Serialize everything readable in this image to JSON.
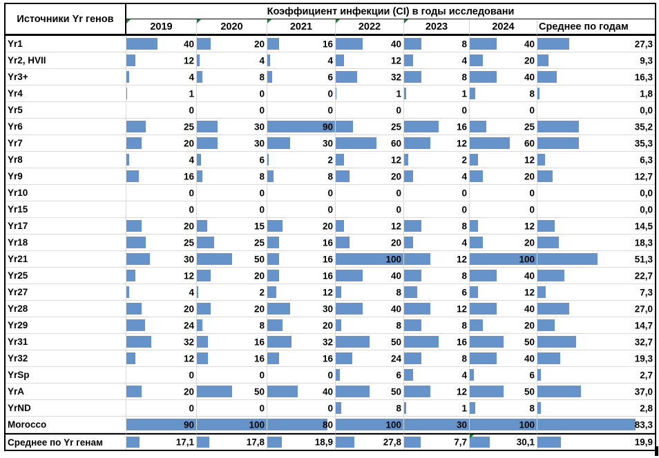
{
  "table": {
    "title": "Коэффициент инфекции (CI) в годы исследовани",
    "row_header_label": "Источники Yr генов",
    "avg_column_label": "Среднее по годам",
    "columns": [
      {
        "label": "2019",
        "marker": true
      },
      {
        "label": "2020",
        "marker": true
      },
      {
        "label": "2021",
        "marker": true
      },
      {
        "label": "2022",
        "marker": true
      },
      {
        "label": "2023",
        "marker": true
      },
      {
        "label": "2024",
        "marker": false
      }
    ],
    "bar_scale_max": [
      90,
      100,
      90,
      100,
      30,
      100,
      100
    ],
    "rows": [
      {
        "label": "Yr1",
        "values": [
          40,
          20,
          16,
          40,
          8,
          40
        ],
        "avg": "27,3"
      },
      {
        "label": "Yr2, HVII",
        "values": [
          12,
          4,
          4,
          12,
          4,
          20
        ],
        "avg": "9,3"
      },
      {
        "label": "Yr3+",
        "values": [
          4,
          8,
          6,
          32,
          8,
          40
        ],
        "avg": "16,3"
      },
      {
        "label": "Yr4",
        "values": [
          1,
          0,
          0,
          1,
          1,
          8
        ],
        "avg": "1,8"
      },
      {
        "label": "Yr5",
        "values": [
          0,
          0,
          0,
          0,
          0,
          0
        ],
        "avg": "0,0"
      },
      {
        "label": "Yr6",
        "values": [
          25,
          30,
          90,
          25,
          16,
          25
        ],
        "avg": "35,2"
      },
      {
        "label": "Yr7",
        "values": [
          20,
          30,
          30,
          60,
          12,
          60
        ],
        "avg": "35,3"
      },
      {
        "label": "Yr8",
        "values": [
          4,
          6,
          2,
          12,
          2,
          12
        ],
        "avg": "6,3"
      },
      {
        "label": "Yr9",
        "values": [
          16,
          8,
          8,
          20,
          4,
          20
        ],
        "avg": "12,7"
      },
      {
        "label": "Yr10",
        "values": [
          0,
          0,
          0,
          0,
          0,
          0
        ],
        "avg": "0,0"
      },
      {
        "label": "Yr15",
        "values": [
          0,
          0,
          0,
          0,
          0,
          0
        ],
        "avg": "0,0"
      },
      {
        "label": "Yr17",
        "values": [
          20,
          15,
          20,
          12,
          8,
          12
        ],
        "avg": "14,5"
      },
      {
        "label": "Yr18",
        "values": [
          25,
          25,
          16,
          20,
          4,
          20
        ],
        "avg": "18,3"
      },
      {
        "label": "Yr21",
        "values": [
          30,
          50,
          16,
          100,
          12,
          100
        ],
        "avg": "51,3"
      },
      {
        "label": "Yr25",
        "values": [
          12,
          20,
          16,
          40,
          8,
          40
        ],
        "avg": "22,7"
      },
      {
        "label": "Yr27",
        "values": [
          4,
          2,
          12,
          8,
          6,
          12
        ],
        "avg": "7,3"
      },
      {
        "label": "Yr28",
        "values": [
          20,
          20,
          30,
          40,
          12,
          40
        ],
        "avg": "27,0"
      },
      {
        "label": "Yr29",
        "values": [
          24,
          8,
          20,
          8,
          8,
          20
        ],
        "avg": "14,7"
      },
      {
        "label": "Yr31",
        "values": [
          32,
          16,
          32,
          50,
          16,
          50
        ],
        "avg": "32,7"
      },
      {
        "label": "Yr32",
        "values": [
          12,
          16,
          16,
          24,
          8,
          40
        ],
        "avg": "19,3"
      },
      {
        "label": "YrSp",
        "values": [
          0,
          0,
          0,
          6,
          4,
          6
        ],
        "avg": "2,7"
      },
      {
        "label": "YrA",
        "values": [
          20,
          50,
          40,
          50,
          12,
          50
        ],
        "avg": "37,0"
      },
      {
        "label": "YrND",
        "values": [
          0,
          0,
          0,
          8,
          1,
          8
        ],
        "avg": "2,8"
      },
      {
        "label": "Morocco",
        "values": [
          90,
          100,
          80,
          100,
          30,
          100
        ],
        "avg": "83,3"
      }
    ],
    "footer": {
      "label": "Среднее по Yr генам",
      "values": [
        "17,1",
        "17,8",
        "18,9",
        "27,8",
        "7,7",
        "30,1"
      ],
      "avg": "19,9",
      "marker_col_index": 5
    },
    "colors": {
      "bar": "#6694CA",
      "marker": "#217C36"
    }
  }
}
